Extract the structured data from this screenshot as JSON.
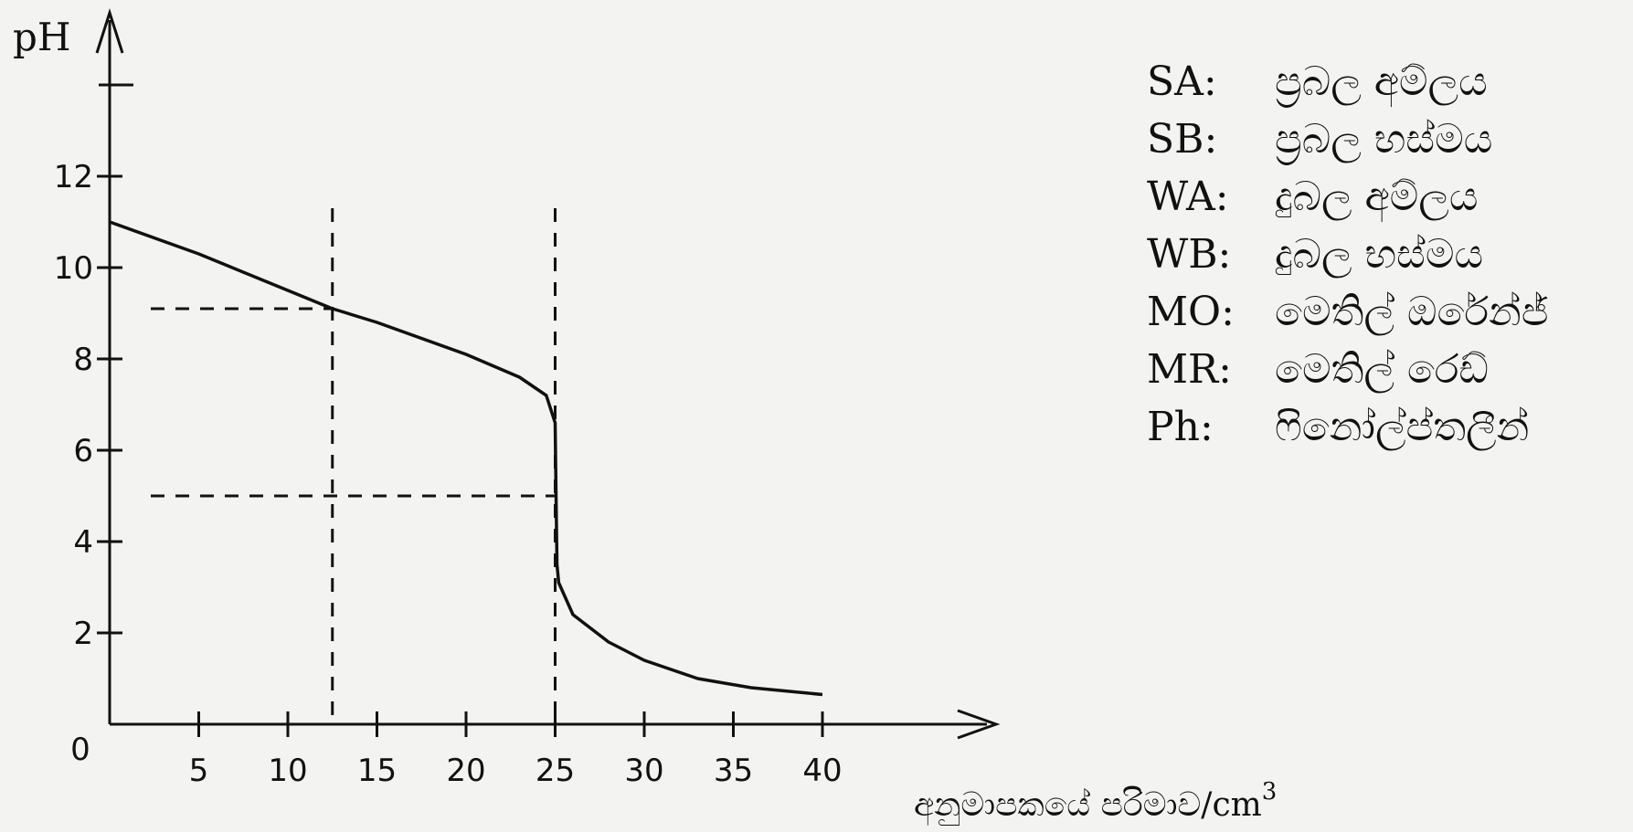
{
  "chart_data": {
    "type": "line",
    "ylabel": "pH",
    "xlabel": "අනුමාපකයේ පරිමාව/cm",
    "xlabel_superscript": "3",
    "origin_label": "0",
    "xlim": [
      0,
      40
    ],
    "ylim": [
      0,
      14
    ],
    "x_ticks": [
      5,
      10,
      15,
      20,
      25,
      30,
      35,
      40
    ],
    "y_ticks": [
      2,
      4,
      6,
      8,
      10,
      12
    ],
    "y_extra_tick": 14,
    "grid": false,
    "series": [
      {
        "x": [
          0,
          5,
          10,
          12.5,
          15,
          20,
          23,
          24.5,
          25,
          25.05,
          25.1,
          25.2,
          26,
          28,
          30,
          33,
          36,
          40
        ],
        "y": [
          11,
          10.3,
          9.5,
          9.1,
          8.8,
          8.1,
          7.6,
          7.2,
          6.6,
          5.0,
          3.5,
          3.1,
          2.4,
          1.8,
          1.4,
          1.0,
          0.8,
          0.65
        ]
      }
    ],
    "reference_lines": [
      {
        "orientation": "vertical",
        "x": 12.5
      },
      {
        "orientation": "vertical",
        "x": 25
      },
      {
        "orientation": "horizontal",
        "y": 9.1
      },
      {
        "orientation": "horizontal",
        "y": 5.0
      }
    ]
  },
  "legend": [
    {
      "abbr": "SA:",
      "meaning": "ප්‍රබල අම්ලය"
    },
    {
      "abbr": "SB:",
      "meaning": "ප්‍රබල භස්මය"
    },
    {
      "abbr": "WA:",
      "meaning": "දුබල අම්ලය"
    },
    {
      "abbr": "WB:",
      "meaning": "දුබල භස්මය"
    },
    {
      "abbr": "MO:",
      "meaning": "මෙතිල් ඔරේන්ජ්"
    },
    {
      "abbr": "MR:",
      "meaning": "මෙතිල් රෙඩ්"
    },
    {
      "abbr": "Ph:",
      "meaning": "ෆිනෝල්ප්තලීන්"
    }
  ]
}
